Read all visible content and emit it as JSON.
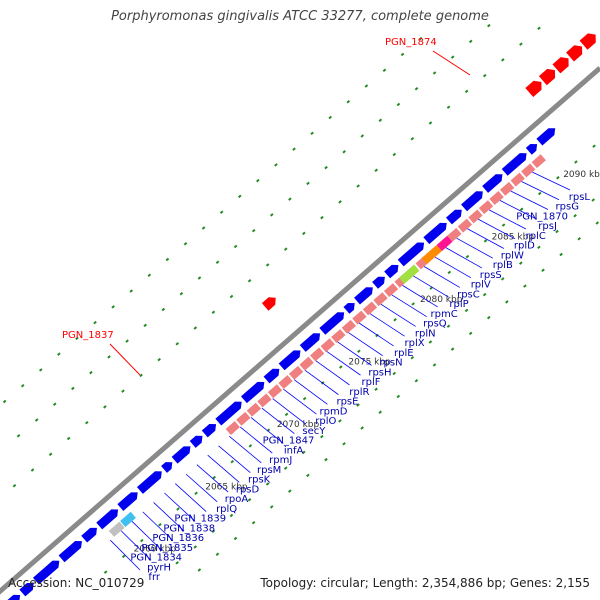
{
  "title": "Porphyromonas gingivalis ATCC 33277, complete genome",
  "footer": {
    "accession": "Accession: NC_010729",
    "summary": "Topology: circular; Length: 2,354,886 bp; Genes: 2,155"
  },
  "colors": {
    "backbone": "#8a8a8a",
    "forward_gene": "#0000ee",
    "reverse_gene": "#ff0000",
    "rrna": "#f08080",
    "gc_tick": "#228b22",
    "label_line": "#0000ff",
    "pseudo": "#999999"
  },
  "scale_labels": [
    "2060 kbp",
    "2065 kbp",
    "2070 kbp",
    "2075 kbp",
    "2080 kbp",
    "2085 kbp",
    "2090 kbp"
  ],
  "highlight_labels": [
    "PGN_1874",
    "PGN_1837"
  ],
  "gene_labels": [
    "rpsL",
    "rpsG",
    "PGN_1870",
    "rpsJ",
    "rplC",
    "rplD",
    "rplW",
    "rplB",
    "rpsS",
    "rplV",
    "rpsC",
    "rplP",
    "rpmC",
    "rpsQ",
    "rplN",
    "rplX",
    "rplE",
    "rpsN",
    "rpsH",
    "rplF",
    "rplR",
    "rpsE",
    "rpmD",
    "rplO",
    "secY",
    "PGN_1847",
    "infA",
    "rpmJ",
    "rpsM",
    "rpsK",
    "rpsD",
    "rpoA",
    "rplQ",
    "PGN_1839",
    "PGN_1838",
    "PGN_1836",
    "PGN_1835",
    "PGN_1834",
    "pyrH",
    "frr"
  ]
}
